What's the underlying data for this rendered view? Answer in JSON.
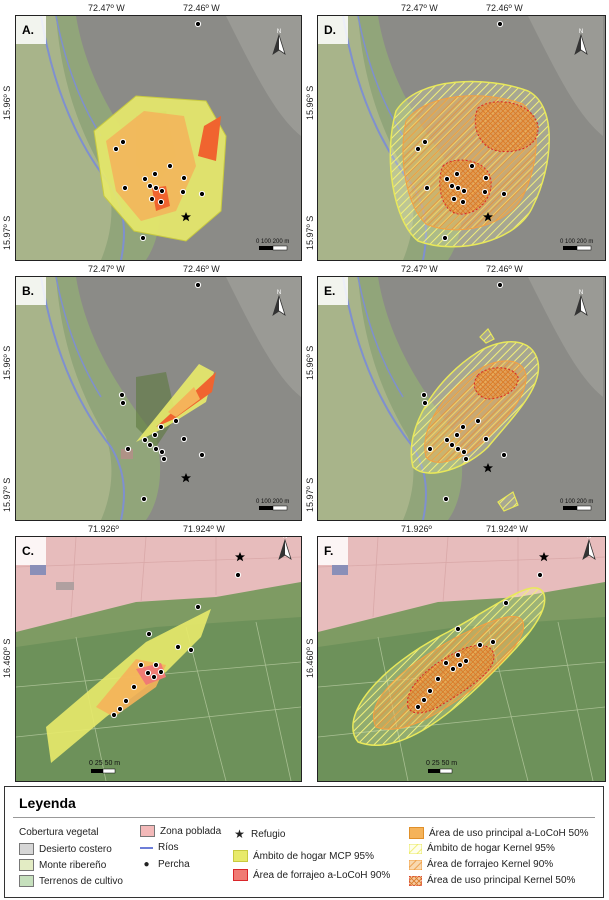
{
  "panels": [
    {
      "id": "A",
      "label": "A.",
      "lon_left": "72.47º W",
      "lon_right": "72.46º W",
      "lat_top": "15.96º S",
      "lat_bottom": "15.97º S",
      "scale": "0  100  200 m"
    },
    {
      "id": "D",
      "label": "D.",
      "lon_left": "72.47º W",
      "lon_right": "72.46º W",
      "lat_top": "15.96º S",
      "lat_bottom": "15.97º S",
      "scale": "0  100  200 m"
    },
    {
      "id": "B",
      "label": "B.",
      "lon_left": "72.47º W",
      "lon_right": "72.46º W",
      "lat_top": "15.96º S",
      "lat_bottom": "15.97º S",
      "scale": "0  100  200 m"
    },
    {
      "id": "E",
      "label": "E.",
      "lon_left": "72.47º W",
      "lon_right": "72.46º W",
      "lat_top": "15.96º S",
      "lat_bottom": "15.97º S",
      "scale": "0  100  200 m"
    },
    {
      "id": "C",
      "label": "C.",
      "lon_left": "71.926º",
      "lon_right": "71.924º W",
      "lat_mid": "16.460º S",
      "scale": "0  25 50 m"
    },
    {
      "id": "F",
      "label": "F.",
      "lon_left": "71.926º",
      "lon_right": "71.924º W",
      "lat_mid": "16.460º S",
      "scale": "0  25 50 m"
    }
  ],
  "legend": {
    "title": "Leyenda",
    "cobertura_title": "Cobertura vegetal",
    "items": {
      "desierto": "Desierto costero",
      "monte": "Monte ribereño",
      "cultivo": "Terrenos de cultivo",
      "poblada": "Zona poblada",
      "rios": "Ríos",
      "percha": "Percha",
      "refugio": "Refugio",
      "mcp": "Ámbito de hogar MCP 95%",
      "locoh90": "Área de forrajeo a-LoCoH 90%",
      "locoh50": "Área de uso principal a-LoCoH 50%",
      "kernel95": "Ámbito de hogar Kernel 95%",
      "kernel90": "Área de forrajeo Kernel 90%",
      "kernel50": "Área de uso principal Kernel 50%"
    },
    "colors": {
      "desierto": "#d6d6d6",
      "monte": "#e3ecc4",
      "cultivo": "#c6e0bd",
      "poblada": "#f3b9b9",
      "mcp": "#e8ea6a",
      "locoh90": "#f07b74",
      "locoh50": "#f5b35a",
      "rio": "#6d7ed8"
    }
  }
}
